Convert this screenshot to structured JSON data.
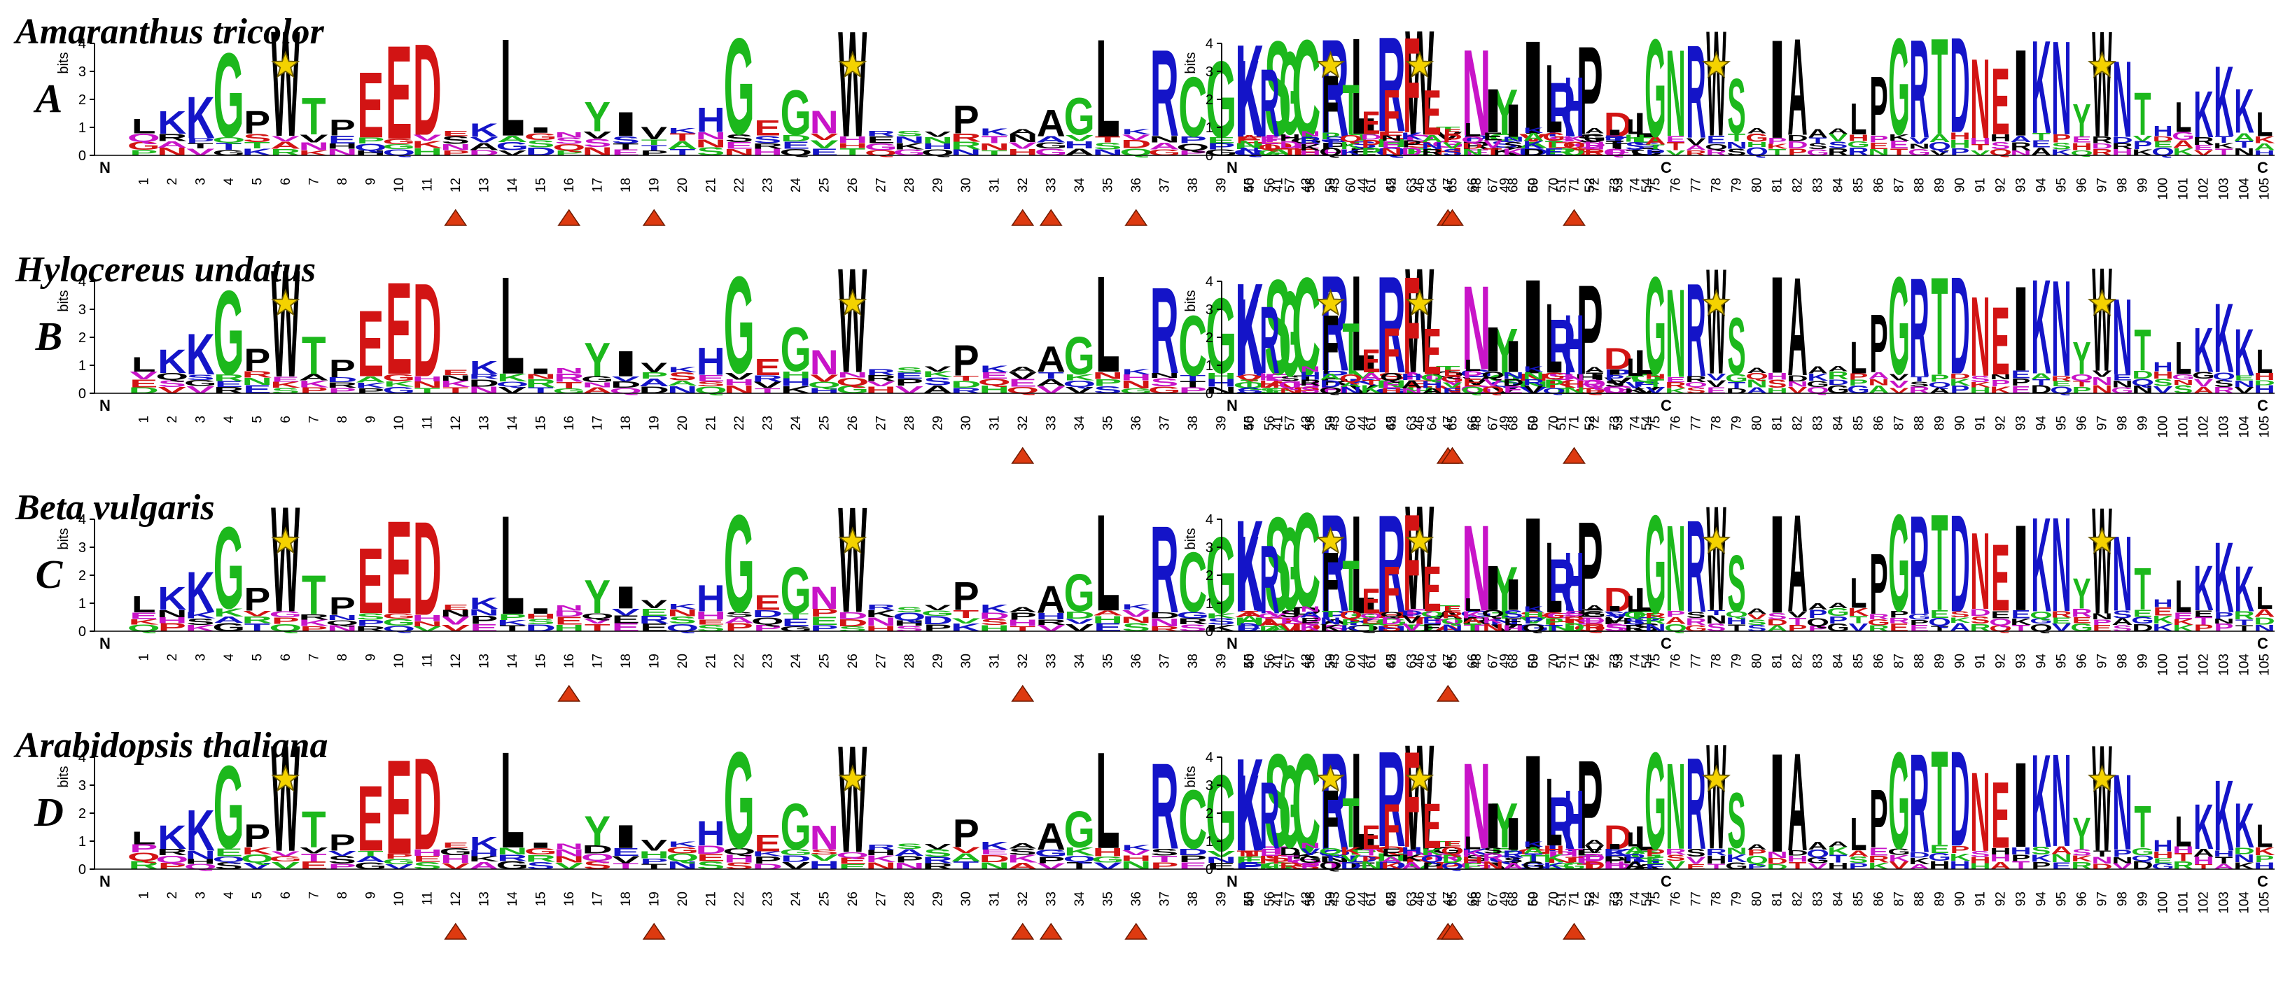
{
  "chart_data": {
    "type": "sequence-logo",
    "y_axis": {
      "label": "bits",
      "ticks": [
        "0",
        "1",
        "2",
        "3",
        "4"
      ],
      "range": [
        0,
        4.3
      ]
    },
    "n_terminus_label": "N",
    "c_terminus_label": "C",
    "segment1_range": [
      1,
      54
    ],
    "segment2_range": [
      55,
      105
    ],
    "colors": {
      "green": "#1cb81c",
      "blue": "#1414c8",
      "red": "#d21414",
      "black": "#000000",
      "magenta": "#c814c8",
      "marker_star": "#f4d200",
      "marker_triangle": "#dd3a10"
    },
    "consensus_logo": [
      {
        "p": 1,
        "l": "L",
        "h": 1.0,
        "c": "black"
      },
      {
        "p": 2,
        "l": "K",
        "h": 1.3,
        "c": "blue"
      },
      {
        "p": 3,
        "l": "K",
        "h": 1.9,
        "c": "blue"
      },
      {
        "p": 4,
        "l": "G",
        "h": 3.5,
        "c": "green"
      },
      {
        "p": 5,
        "l": "P",
        "h": 1.3,
        "c": "black"
      },
      {
        "p": 6,
        "l": "W",
        "h": 4.3,
        "c": "black"
      },
      {
        "p": 7,
        "l": "T",
        "h": 1.8,
        "c": "green"
      },
      {
        "p": 8,
        "l": "P",
        "h": 1.0,
        "c": "black"
      },
      {
        "p": 9,
        "l": "E",
        "h": 2.8,
        "c": "red"
      },
      {
        "p": 10,
        "l": "E",
        "h": 3.8,
        "c": "red"
      },
      {
        "p": 11,
        "l": "D",
        "h": 3.8,
        "c": "red"
      },
      {
        "p": 12,
        "l": "E",
        "h": 0.3,
        "c": "red"
      },
      {
        "p": 13,
        "l": "K",
        "h": 0.9,
        "c": "blue"
      },
      {
        "p": 14,
        "l": "L",
        "h": 4.0,
        "c": "black"
      },
      {
        "p": 15,
        "l": "I",
        "h": 0.3,
        "c": "black"
      },
      {
        "p": 16,
        "l": "N",
        "h": 0.3,
        "c": "magenta"
      },
      {
        "p": 17,
        "l": "Y",
        "h": 1.6,
        "c": "green"
      },
      {
        "p": 18,
        "l": "I",
        "h": 1.3,
        "c": "black"
      },
      {
        "p": 19,
        "l": "V",
        "h": 0.8,
        "c": "black"
      },
      {
        "p": 20,
        "l": "K",
        "h": 0.3,
        "c": "blue"
      },
      {
        "p": 21,
        "l": "H",
        "h": 1.4,
        "c": "blue"
      },
      {
        "p": 22,
        "l": "G",
        "h": 4.0,
        "c": "green"
      },
      {
        "p": 23,
        "l": "E",
        "h": 1.0,
        "c": "red"
      },
      {
        "p": 24,
        "l": "G",
        "h": 2.1,
        "c": "green"
      },
      {
        "p": 25,
        "l": "N",
        "h": 1.3,
        "c": "magenta"
      },
      {
        "p": 26,
        "l": "W",
        "h": 4.3,
        "c": "black"
      },
      {
        "p": 27,
        "l": "R",
        "h": 0.6,
        "c": "blue"
      },
      {
        "p": 28,
        "l": "S",
        "h": 0.4,
        "c": "green"
      },
      {
        "p": 29,
        "l": "V",
        "h": 0.6,
        "c": "black"
      },
      {
        "p": 30,
        "l": "P",
        "h": 1.5,
        "c": "black"
      },
      {
        "p": 31,
        "l": "K",
        "h": 0.7,
        "c": "blue"
      },
      {
        "p": 32,
        "l": "A",
        "h": 0.4,
        "c": "black"
      },
      {
        "p": 33,
        "l": "A",
        "h": 1.4,
        "c": "black"
      },
      {
        "p": 34,
        "l": "G",
        "h": 1.8,
        "c": "green"
      },
      {
        "p": 35,
        "l": "L",
        "h": 4.0,
        "c": "black"
      },
      {
        "p": 36,
        "l": "K",
        "h": 0.6,
        "c": "blue"
      },
      {
        "p": 37,
        "l": "R",
        "h": 3.6,
        "c": "blue"
      },
      {
        "p": 38,
        "l": "C",
        "h": 2.6,
        "c": "green"
      },
      {
        "p": 39,
        "l": "G",
        "h": 3.2,
        "c": "green"
      },
      {
        "p": 40,
        "l": "K",
        "h": 3.8,
        "c": "blue"
      },
      {
        "p": 41,
        "l": "S",
        "h": 3.9,
        "c": "green"
      },
      {
        "p": 42,
        "l": "C",
        "h": 4.0,
        "c": "green"
      },
      {
        "p": 43,
        "l": "R",
        "h": 4.0,
        "c": "blue"
      },
      {
        "p": 44,
        "l": "L",
        "h": 4.0,
        "c": "black"
      },
      {
        "p": 45,
        "l": "R",
        "h": 4.0,
        "c": "blue"
      },
      {
        "p": 46,
        "l": "W",
        "h": 4.3,
        "c": "black"
      },
      {
        "p": 47,
        "l": "T",
        "h": 0.3,
        "c": "green"
      },
      {
        "p": 48,
        "l": "N",
        "h": 3.6,
        "c": "magenta"
      },
      {
        "p": 49,
        "l": "Y",
        "h": 2.1,
        "c": "green"
      },
      {
        "p": 50,
        "l": "I",
        "h": 3.9,
        "c": "black"
      },
      {
        "p": 51,
        "l": "R",
        "h": 2.4,
        "c": "blue"
      },
      {
        "p": 52,
        "l": "P",
        "h": 3.7,
        "c": "black"
      },
      {
        "p": 53,
        "l": "D",
        "h": 1.3,
        "c": "red"
      },
      {
        "p": 54,
        "l": "L",
        "h": 1.3,
        "c": "black"
      },
      {
        "p": 55,
        "l": "K",
        "h": 3.2,
        "c": "blue"
      },
      {
        "p": 56,
        "l": "R",
        "h": 2.9,
        "c": "blue"
      },
      {
        "p": 57,
        "l": "G",
        "h": 3.5,
        "c": "green"
      },
      {
        "p": 58,
        "l": "N",
        "h": 0.3,
        "c": "magenta"
      },
      {
        "p": 59,
        "l": "F",
        "h": 2.6,
        "c": "black"
      },
      {
        "p": 60,
        "l": "T",
        "h": 2.3,
        "c": "green"
      },
      {
        "p": 61,
        "l": "E",
        "h": 1.3,
        "c": "red"
      },
      {
        "p": 62,
        "l": "F",
        "h": 2.1,
        "c": "red"
      },
      {
        "p": 63,
        "l": "F",
        "h": 4.0,
        "c": "red"
      },
      {
        "p": 64,
        "l": "E",
        "h": 2.1,
        "c": "red"
      },
      {
        "p": 65,
        "l": "E",
        "h": 0.6,
        "c": "red"
      },
      {
        "p": 66,
        "l": "L",
        "h": 0.9,
        "c": "black"
      },
      {
        "p": 67,
        "l": "I",
        "h": 2.1,
        "c": "black"
      },
      {
        "p": 68,
        "l": "I",
        "h": 1.6,
        "c": "black"
      },
      {
        "p": 69,
        "l": "K",
        "h": 0.5,
        "c": "blue"
      },
      {
        "p": 70,
        "l": "L",
        "h": 3.0,
        "c": "black"
      },
      {
        "p": 71,
        "l": "H",
        "h": 2.6,
        "c": "blue"
      },
      {
        "p": 72,
        "l": "A",
        "h": 0.5,
        "c": "black"
      },
      {
        "p": 73,
        "l": "I",
        "h": 0.3,
        "c": "black"
      },
      {
        "p": 74,
        "l": "L",
        "h": 1.0,
        "c": "black"
      },
      {
        "p": 75,
        "l": "G",
        "h": 4.0,
        "c": "green"
      },
      {
        "p": 76,
        "l": "N",
        "h": 3.6,
        "c": "green"
      },
      {
        "p": 77,
        "l": "R",
        "h": 3.8,
        "c": "blue"
      },
      {
        "p": 78,
        "l": "W",
        "h": 4.3,
        "c": "black"
      },
      {
        "p": 79,
        "l": "S",
        "h": 2.5,
        "c": "green"
      },
      {
        "p": 80,
        "l": "A",
        "h": 0.4,
        "c": "black"
      },
      {
        "p": 81,
        "l": "I",
        "h": 4.0,
        "c": "black"
      },
      {
        "p": 82,
        "l": "A",
        "h": 4.0,
        "c": "black"
      },
      {
        "p": 83,
        "l": "A",
        "h": 0.7,
        "c": "black"
      },
      {
        "p": 84,
        "l": "A",
        "h": 0.5,
        "c": "black"
      },
      {
        "p": 85,
        "l": "L",
        "h": 1.6,
        "c": "black"
      },
      {
        "p": 86,
        "l": "P",
        "h": 2.6,
        "c": "black"
      },
      {
        "p": 87,
        "l": "G",
        "h": 4.0,
        "c": "green"
      },
      {
        "p": 88,
        "l": "R",
        "h": 4.0,
        "c": "blue"
      },
      {
        "p": 89,
        "l": "T",
        "h": 4.0,
        "c": "green"
      },
      {
        "p": 90,
        "l": "D",
        "h": 4.0,
        "c": "blue"
      },
      {
        "p": 91,
        "l": "N",
        "h": 3.3,
        "c": "red"
      },
      {
        "p": 92,
        "l": "E",
        "h": 2.9,
        "c": "red"
      },
      {
        "p": 93,
        "l": "I",
        "h": 3.6,
        "c": "black"
      },
      {
        "p": 94,
        "l": "K",
        "h": 3.9,
        "c": "blue"
      },
      {
        "p": 95,
        "l": "N",
        "h": 3.9,
        "c": "blue"
      },
      {
        "p": 96,
        "l": "Y",
        "h": 1.6,
        "c": "green"
      },
      {
        "p": 97,
        "l": "W",
        "h": 4.3,
        "c": "black"
      },
      {
        "p": 98,
        "l": "N",
        "h": 3.2,
        "c": "blue"
      },
      {
        "p": 99,
        "l": "T",
        "h": 2.0,
        "c": "green"
      },
      {
        "p": 100,
        "l": "H",
        "h": 0.8,
        "c": "blue"
      },
      {
        "p": 101,
        "l": "L",
        "h": 1.6,
        "c": "black"
      },
      {
        "p": 102,
        "l": "K",
        "h": 2.1,
        "c": "blue"
      },
      {
        "p": 103,
        "l": "K",
        "h": 3.0,
        "c": "blue"
      },
      {
        "p": 104,
        "l": "K",
        "h": 2.1,
        "c": "blue"
      },
      {
        "p": 105,
        "l": "L",
        "h": 1.3,
        "c": "black"
      }
    ],
    "panels": [
      {
        "panel": "A",
        "species": "Amaranthus tricolor",
        "star_positions": [
          6,
          26,
          46,
          59,
          78,
          97
        ],
        "triangle_positions": [
          12,
          16,
          19,
          32,
          33,
          36,
          47,
          65,
          71
        ]
      },
      {
        "panel": "B",
        "species": "Hylocereus undatus",
        "star_positions": [
          6,
          26,
          46,
          59,
          78,
          97
        ],
        "triangle_positions": [
          32,
          47,
          65,
          71
        ]
      },
      {
        "panel": "C",
        "species": "Beta vulgaris",
        "star_positions": [
          6,
          26,
          46,
          59,
          78,
          97
        ],
        "triangle_positions": [
          16,
          32,
          47
        ]
      },
      {
        "panel": "D",
        "species": "Arabidopsis thaliana",
        "star_positions": [
          6,
          26,
          46,
          59,
          78,
          97
        ],
        "triangle_positions": [
          12,
          19,
          32,
          33,
          36,
          47,
          65,
          71
        ]
      }
    ]
  }
}
